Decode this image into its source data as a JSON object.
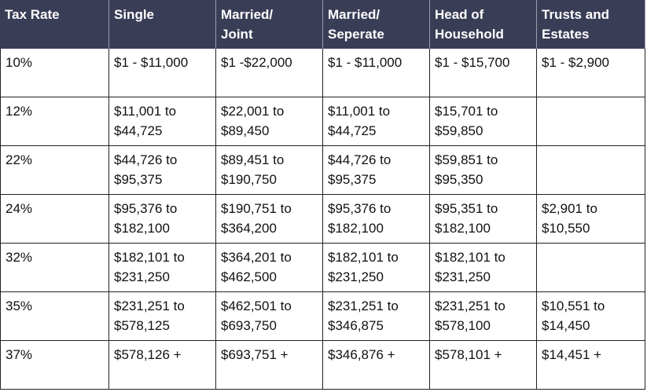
{
  "table": {
    "header": [
      [
        "Tax Rate"
      ],
      [
        "Single"
      ],
      [
        "Married/",
        "Joint"
      ],
      [
        "Married/",
        "Seperate"
      ],
      [
        "Head of",
        "Household"
      ],
      [
        "Trusts and",
        "Estates"
      ]
    ],
    "rows": [
      [
        [
          "10%"
        ],
        [
          "$1 - $11,000"
        ],
        [
          "$1 -$22,000"
        ],
        [
          "$1 - $11,000"
        ],
        [
          "$1 - $15,700"
        ],
        [
          "$1 - $2,900"
        ]
      ],
      [
        [
          "12%"
        ],
        [
          "$11,001 to",
          "$44,725"
        ],
        [
          "$22,001 to",
          "$89,450"
        ],
        [
          "$11,001 to",
          "$44,725"
        ],
        [
          "$15,701 to",
          "$59,850"
        ],
        null
      ],
      [
        [
          "22%"
        ],
        [
          "$44,726 to",
          "$95,375"
        ],
        [
          "$89,451 to",
          "$190,750"
        ],
        [
          "$44,726 to",
          "$95,375"
        ],
        [
          "$59,851 to",
          "$95,350"
        ],
        null
      ],
      [
        [
          "24%"
        ],
        [
          "$95,376 to",
          "$182,100"
        ],
        [
          "$190,751 to",
          "$364,200"
        ],
        [
          "$95,376 to",
          "$182,100"
        ],
        [
          "$95,351 to",
          "$182,100"
        ],
        [
          "$2,901 to",
          "$10,550"
        ]
      ],
      [
        [
          "32%"
        ],
        [
          "$182,101 to",
          "$231,250"
        ],
        [
          "$364,201 to",
          "$462,500"
        ],
        [
          "$182,101 to",
          "$231,250"
        ],
        [
          "$182,101 to",
          "$231,250"
        ],
        null
      ],
      [
        [
          "35%"
        ],
        [
          "$231,251 to",
          "$578,125"
        ],
        [
          "$462,501 to",
          "$693,750"
        ],
        [
          "$231,251 to",
          "$346,875"
        ],
        [
          "$231,251 to",
          "$578,100"
        ],
        [
          "$10,551 to",
          "$14,450"
        ]
      ],
      [
        [
          "37%"
        ],
        [
          "$578,126 +"
        ],
        [
          "$693,751 +"
        ],
        [
          "$346,876 +"
        ],
        [
          "$578,101 +"
        ],
        [
          "$14,451 +"
        ]
      ]
    ]
  }
}
